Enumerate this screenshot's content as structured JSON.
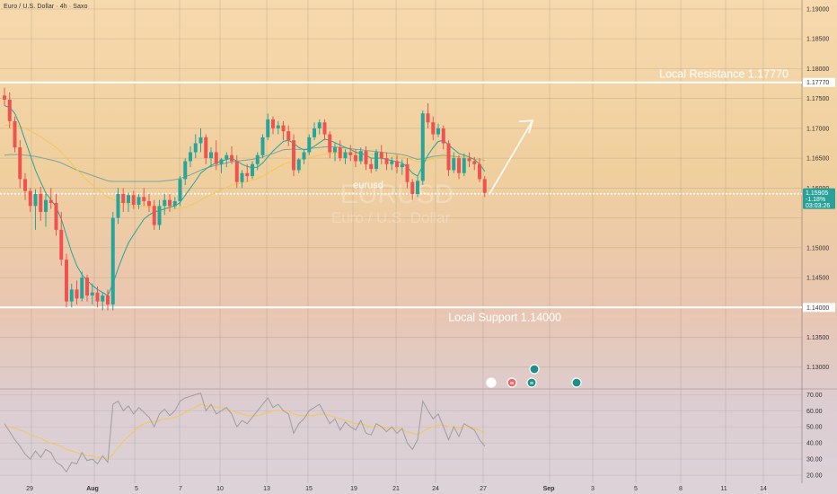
{
  "header": {
    "title": "Euro / U.S. Dollar · 4h · Saxo"
  },
  "colors": {
    "up": "#26a69a",
    "down": "#ef5350",
    "ma_fast": "#26a69a",
    "ma_slow": "#f1c85a",
    "level_line": "#ffffff",
    "rsi_line": "#9e9e9e",
    "rsi_signal": "#f1c85a"
  },
  "chart_data": {
    "type": "candlestick",
    "symbol_label": "eurusd",
    "watermark_symbol": "EURUSD",
    "watermark_name": "Euro / U.S. Dollar",
    "y_ticks": [
      "1.19000",
      "1.18500",
      "1.18000",
      "1.17770",
      "1.17500",
      "1.17000",
      "1.16500",
      "1.16000",
      "1.15905",
      "1.15900",
      "1.15000",
      "1.14500",
      "1.14000",
      "1.13500",
      "1.13000"
    ],
    "ylim": [
      1.1265,
      1.1915
    ],
    "current_price": {
      "value": "1.15905",
      "change": "-1.18%",
      "countdown": "03:03:26"
    },
    "x_labels": [
      "29",
      "Aug",
      "5",
      "7",
      "10",
      "13",
      "15",
      "19",
      "21",
      "24",
      "27",
      "Sep",
      "3",
      "5",
      "8",
      "11",
      "14"
    ],
    "levels": [
      {
        "label": "Local Resistance 1.17770",
        "value": 1.1777
      },
      {
        "label": "Local Support 1.14000",
        "value": 1.14
      }
    ],
    "projection_arrow": {
      "from": 1.159,
      "to": 1.1713
    },
    "candles": [
      [
        1.1755,
        1.1768,
        1.1738,
        1.1748
      ],
      [
        1.1748,
        1.176,
        1.17,
        1.1712
      ],
      [
        1.1712,
        1.172,
        1.166,
        1.1668
      ],
      [
        1.1668,
        1.168,
        1.16,
        1.1615
      ],
      [
        1.1615,
        1.1625,
        1.158,
        1.1595
      ],
      [
        1.1595,
        1.16,
        1.156,
        1.157
      ],
      [
        1.157,
        1.1598,
        1.153,
        1.159
      ],
      [
        1.159,
        1.1602,
        1.1545,
        1.156
      ],
      [
        1.156,
        1.159,
        1.1535,
        1.158
      ],
      [
        1.158,
        1.16,
        1.1565,
        1.1575
      ],
      [
        1.1575,
        1.159,
        1.152,
        1.153
      ],
      [
        1.153,
        1.156,
        1.147,
        1.148
      ],
      [
        1.148,
        1.149,
        1.14,
        1.141
      ],
      [
        1.141,
        1.144,
        1.14,
        1.143
      ],
      [
        1.143,
        1.1445,
        1.1405,
        1.1415
      ],
      [
        1.1415,
        1.146,
        1.141,
        1.145
      ],
      [
        1.145,
        1.1455,
        1.141,
        1.142
      ],
      [
        1.142,
        1.144,
        1.1405,
        1.1425
      ],
      [
        1.1425,
        1.1435,
        1.14,
        1.141
      ],
      [
        1.141,
        1.1425,
        1.1395,
        1.142
      ],
      [
        1.142,
        1.143,
        1.1395,
        1.1405
      ],
      [
        1.1405,
        1.156,
        1.1395,
        1.155
      ],
      [
        1.155,
        1.16,
        1.154,
        1.159
      ],
      [
        1.159,
        1.16,
        1.156,
        1.1575
      ],
      [
        1.1575,
        1.1592,
        1.156,
        1.1588
      ],
      [
        1.1588,
        1.1595,
        1.1565,
        1.1572
      ],
      [
        1.1572,
        1.159,
        1.1565,
        1.1585
      ],
      [
        1.1585,
        1.16,
        1.157,
        1.1578
      ],
      [
        1.1578,
        1.159,
        1.156,
        1.157
      ],
      [
        1.157,
        1.158,
        1.153,
        1.1538
      ],
      [
        1.1538,
        1.158,
        1.153,
        1.157
      ],
      [
        1.157,
        1.159,
        1.1555,
        1.158
      ],
      [
        1.158,
        1.159,
        1.156,
        1.157
      ],
      [
        1.157,
        1.1585,
        1.1565,
        1.1578
      ],
      [
        1.1578,
        1.162,
        1.157,
        1.1615
      ],
      [
        1.1615,
        1.165,
        1.1605,
        1.1645
      ],
      [
        1.1645,
        1.167,
        1.1635,
        1.166
      ],
      [
        1.166,
        1.169,
        1.165,
        1.1675
      ],
      [
        1.1675,
        1.17,
        1.166,
        1.1685
      ],
      [
        1.1685,
        1.169,
        1.164,
        1.165
      ],
      [
        1.165,
        1.1668,
        1.1635,
        1.166
      ],
      [
        1.166,
        1.168,
        1.163,
        1.164
      ],
      [
        1.164,
        1.165,
        1.1625,
        1.1648
      ],
      [
        1.1648,
        1.166,
        1.1635,
        1.1655
      ],
      [
        1.1655,
        1.167,
        1.164,
        1.1645
      ],
      [
        1.1645,
        1.1655,
        1.16,
        1.161
      ],
      [
        1.161,
        1.163,
        1.16,
        1.1625
      ],
      [
        1.1625,
        1.164,
        1.161,
        1.162
      ],
      [
        1.162,
        1.1645,
        1.1615,
        1.164
      ],
      [
        1.164,
        1.166,
        1.163,
        1.1655
      ],
      [
        1.1655,
        1.169,
        1.165,
        1.1685
      ],
      [
        1.1685,
        1.1725,
        1.168,
        1.1715
      ],
      [
        1.1715,
        1.172,
        1.169,
        1.17
      ],
      [
        1.17,
        1.1712,
        1.169,
        1.1705
      ],
      [
        1.1705,
        1.1712,
        1.168,
        1.1695
      ],
      [
        1.1695,
        1.1705,
        1.167,
        1.168
      ],
      [
        1.168,
        1.169,
        1.162,
        1.163
      ],
      [
        1.163,
        1.165,
        1.1625,
        1.1648
      ],
      [
        1.1648,
        1.1665,
        1.164,
        1.166
      ],
      [
        1.166,
        1.169,
        1.1655,
        1.1685
      ],
      [
        1.1685,
        1.171,
        1.168,
        1.17
      ],
      [
        1.17,
        1.1715,
        1.169,
        1.171
      ],
      [
        1.171,
        1.1715,
        1.168,
        1.169
      ],
      [
        1.169,
        1.1695,
        1.165,
        1.166
      ],
      [
        1.166,
        1.1675,
        1.1645,
        1.1668
      ],
      [
        1.1668,
        1.168,
        1.1645,
        1.165
      ],
      [
        1.165,
        1.1665,
        1.164,
        1.166
      ],
      [
        1.166,
        1.1672,
        1.1645,
        1.1655
      ],
      [
        1.1655,
        1.1665,
        1.1635,
        1.1645
      ],
      [
        1.1645,
        1.1668,
        1.164,
        1.1662
      ],
      [
        1.1662,
        1.167,
        1.163,
        1.164
      ],
      [
        1.164,
        1.165,
        1.1625,
        1.1632
      ],
      [
        1.1632,
        1.1665,
        1.1628,
        1.166
      ],
      [
        1.166,
        1.1672,
        1.164,
        1.165
      ],
      [
        1.165,
        1.166,
        1.163,
        1.164
      ],
      [
        1.164,
        1.1652,
        1.163,
        1.1645
      ],
      [
        1.1645,
        1.1655,
        1.1625,
        1.1635
      ],
      [
        1.1635,
        1.1648,
        1.1622,
        1.164
      ],
      [
        1.164,
        1.165,
        1.16,
        1.161
      ],
      [
        1.161,
        1.1615,
        1.158,
        1.159
      ],
      [
        1.159,
        1.162,
        1.1585,
        1.1612
      ],
      [
        1.1612,
        1.173,
        1.1605,
        1.1725
      ],
      [
        1.1725,
        1.1742,
        1.17,
        1.171
      ],
      [
        1.171,
        1.172,
        1.168,
        1.169
      ],
      [
        1.169,
        1.1708,
        1.1685,
        1.17
      ],
      [
        1.17,
        1.1705,
        1.1665,
        1.1675
      ],
      [
        1.1675,
        1.168,
        1.162,
        1.163
      ],
      [
        1.163,
        1.166,
        1.1625,
        1.165
      ],
      [
        1.165,
        1.1655,
        1.1615,
        1.1625
      ],
      [
        1.1625,
        1.1658,
        1.162,
        1.165
      ],
      [
        1.165,
        1.166,
        1.1635,
        1.1645
      ],
      [
        1.1645,
        1.1652,
        1.163,
        1.164
      ],
      [
        1.164,
        1.165,
        1.161,
        1.1615
      ],
      [
        1.1615,
        1.162,
        1.1585,
        1.1592
      ]
    ],
    "ma_fast": [
      1.1738,
      1.1735,
      1.1725,
      1.1705,
      1.168,
      1.1655,
      1.163,
      1.161,
      1.1592,
      1.158,
      1.1568,
      1.1548,
      1.152,
      1.1492,
      1.147,
      1.1455,
      1.1445,
      1.1437,
      1.143,
      1.1425,
      1.142,
      1.144,
      1.1465,
      1.1488,
      1.1508,
      1.1522,
      1.1535,
      1.1548,
      1.1555,
      1.156,
      1.1562,
      1.1565,
      1.1568,
      1.157,
      1.1576,
      1.1588,
      1.16,
      1.1612,
      1.1625,
      1.1632,
      1.1638,
      1.1642,
      1.1645,
      1.1648,
      1.165,
      1.1645,
      1.164,
      1.1636,
      1.1634,
      1.1635,
      1.1642,
      1.1652,
      1.1662,
      1.167,
      1.1678,
      1.168,
      1.1675,
      1.1668,
      1.1664,
      1.1665,
      1.167,
      1.1676,
      1.1682,
      1.168,
      1.1676,
      1.1672,
      1.1668,
      1.1665,
      1.166,
      1.1658,
      1.1655,
      1.165,
      1.165,
      1.165,
      1.1648,
      1.1646,
      1.1644,
      1.1642,
      1.1635,
      1.1625,
      1.162,
      1.1638,
      1.1655,
      1.1668,
      1.1678,
      1.168,
      1.1672,
      1.1665,
      1.1658,
      1.1655,
      1.1652,
      1.1648,
      1.164,
      1.1628
    ],
    "ma_slow": [
      1.1705,
      1.1706,
      1.1705,
      1.1703,
      1.17,
      1.1696,
      1.1691,
      1.1686,
      1.168,
      1.1674,
      1.1668,
      1.166,
      1.1651,
      1.1641,
      1.1631,
      1.1622,
      1.1613,
      1.1605,
      1.1598,
      1.1591,
      1.1585,
      1.1581,
      1.1578,
      1.1575,
      1.1573,
      1.1571,
      1.157,
      1.1569,
      1.1568,
      1.1567,
      1.1566,
      1.1565,
      1.1565,
      1.1565,
      1.1566,
      1.1568,
      1.1571,
      1.1575,
      1.158,
      1.1585,
      1.1589,
      1.1593,
      1.1597,
      1.1601,
      1.1605,
      1.1607,
      1.1609,
      1.1611,
      1.1613,
      1.1616,
      1.162,
      1.1625,
      1.163,
      1.1635,
      1.164,
      1.1643,
      1.1645,
      1.1647,
      1.1649,
      1.1651,
      1.1653,
      1.1655,
      1.1657,
      1.1658,
      1.1659,
      1.1659,
      1.1659,
      1.1659,
      1.1658,
      1.1658,
      1.1657,
      1.1656,
      1.1656,
      1.1655,
      1.1655,
      1.1654,
      1.1653,
      1.1652,
      1.165,
      1.1647,
      1.1644,
      1.1645,
      1.1647,
      1.1649,
      1.1651,
      1.1652,
      1.1652,
      1.1652,
      1.1651,
      1.1651,
      1.165,
      1.165,
      1.1648,
      1.1645
    ],
    "ma_slow2": [
      1.1655,
      1.1656,
      1.1656,
      1.1656,
      1.1655,
      1.1654,
      1.1653,
      1.1651,
      1.1649,
      1.1647,
      1.1645,
      1.1642,
      1.1638,
      1.1634,
      1.163,
      1.1627,
      1.1624,
      1.1621,
      1.1618,
      1.1615,
      1.1612,
      1.1611,
      1.1611,
      1.1611,
      1.1611,
      1.1611,
      1.1611,
      1.1611,
      1.1611,
      1.1611,
      1.1611,
      1.1612,
      1.1613,
      1.1614,
      1.1616,
      1.1619,
      1.1622,
      1.1626,
      1.163,
      1.1633,
      1.1636,
      1.1638,
      1.164,
      1.1642,
      1.1644,
      1.1645,
      1.1646,
      1.1647,
      1.1648,
      1.165,
      1.1652,
      1.1655,
      1.1658,
      1.1661,
      1.1664,
      1.1665,
      1.1665,
      1.1665,
      1.1665,
      1.1666,
      1.1667,
      1.1668,
      1.1669,
      1.1669,
      1.1669,
      1.1668,
      1.1667,
      1.1666,
      1.1665,
      1.1664,
      1.1663,
      1.1662,
      1.1661,
      1.166,
      1.1659,
      1.1658,
      1.1657,
      1.1656,
      1.1654,
      1.1651,
      1.1648,
      1.1649,
      1.1651,
      1.1653,
      1.1654,
      1.1655,
      1.1654,
      1.1653,
      1.1652,
      1.1651,
      1.165,
      1.1649,
      1.1648,
      1.1646
    ],
    "rsi": {
      "y_ticks": [
        "70.00",
        "60.00",
        "50.00",
        "40.00",
        "30.00",
        "20.00"
      ],
      "ylim": [
        15,
        73
      ],
      "values": [
        52,
        47,
        42,
        38,
        33,
        30,
        35,
        31,
        36,
        34,
        28,
        26,
        22,
        28,
        27,
        34,
        29,
        30,
        27,
        32,
        28,
        64,
        66,
        60,
        63,
        58,
        62,
        59,
        56,
        50,
        58,
        61,
        57,
        60,
        66,
        68,
        69,
        70,
        71,
        60,
        64,
        58,
        60,
        62,
        58,
        50,
        54,
        52,
        56,
        60,
        64,
        68,
        62,
        64,
        60,
        58,
        46,
        52,
        55,
        60,
        62,
        64,
        58,
        52,
        55,
        48,
        53,
        50,
        48,
        54,
        46,
        45,
        52,
        50,
        47,
        50,
        46,
        49,
        40,
        36,
        42,
        66,
        60,
        55,
        58,
        50,
        42,
        50,
        44,
        52,
        50,
        48,
        42,
        38
      ],
      "signal": [
        50,
        50,
        49,
        48,
        47,
        45,
        44,
        43,
        41,
        40,
        39,
        38,
        36,
        35,
        34,
        33,
        32,
        32,
        31,
        31,
        30,
        33,
        37,
        41,
        44,
        47,
        50,
        52,
        53,
        53,
        54,
        55,
        55,
        56,
        57,
        59,
        61,
        62,
        64,
        63,
        63,
        62,
        62,
        61,
        60,
        59,
        58,
        57,
        57,
        57,
        58,
        59,
        60,
        60,
        60,
        60,
        58,
        57,
        57,
        57,
        57,
        58,
        58,
        57,
        56,
        55,
        54,
        53,
        52,
        52,
        51,
        50,
        50,
        50,
        49,
        49,
        49,
        48,
        47,
        46,
        45,
        47,
        49,
        50,
        51,
        51,
        50,
        50,
        49,
        50,
        50,
        49,
        48,
        46
      ]
    }
  }
}
